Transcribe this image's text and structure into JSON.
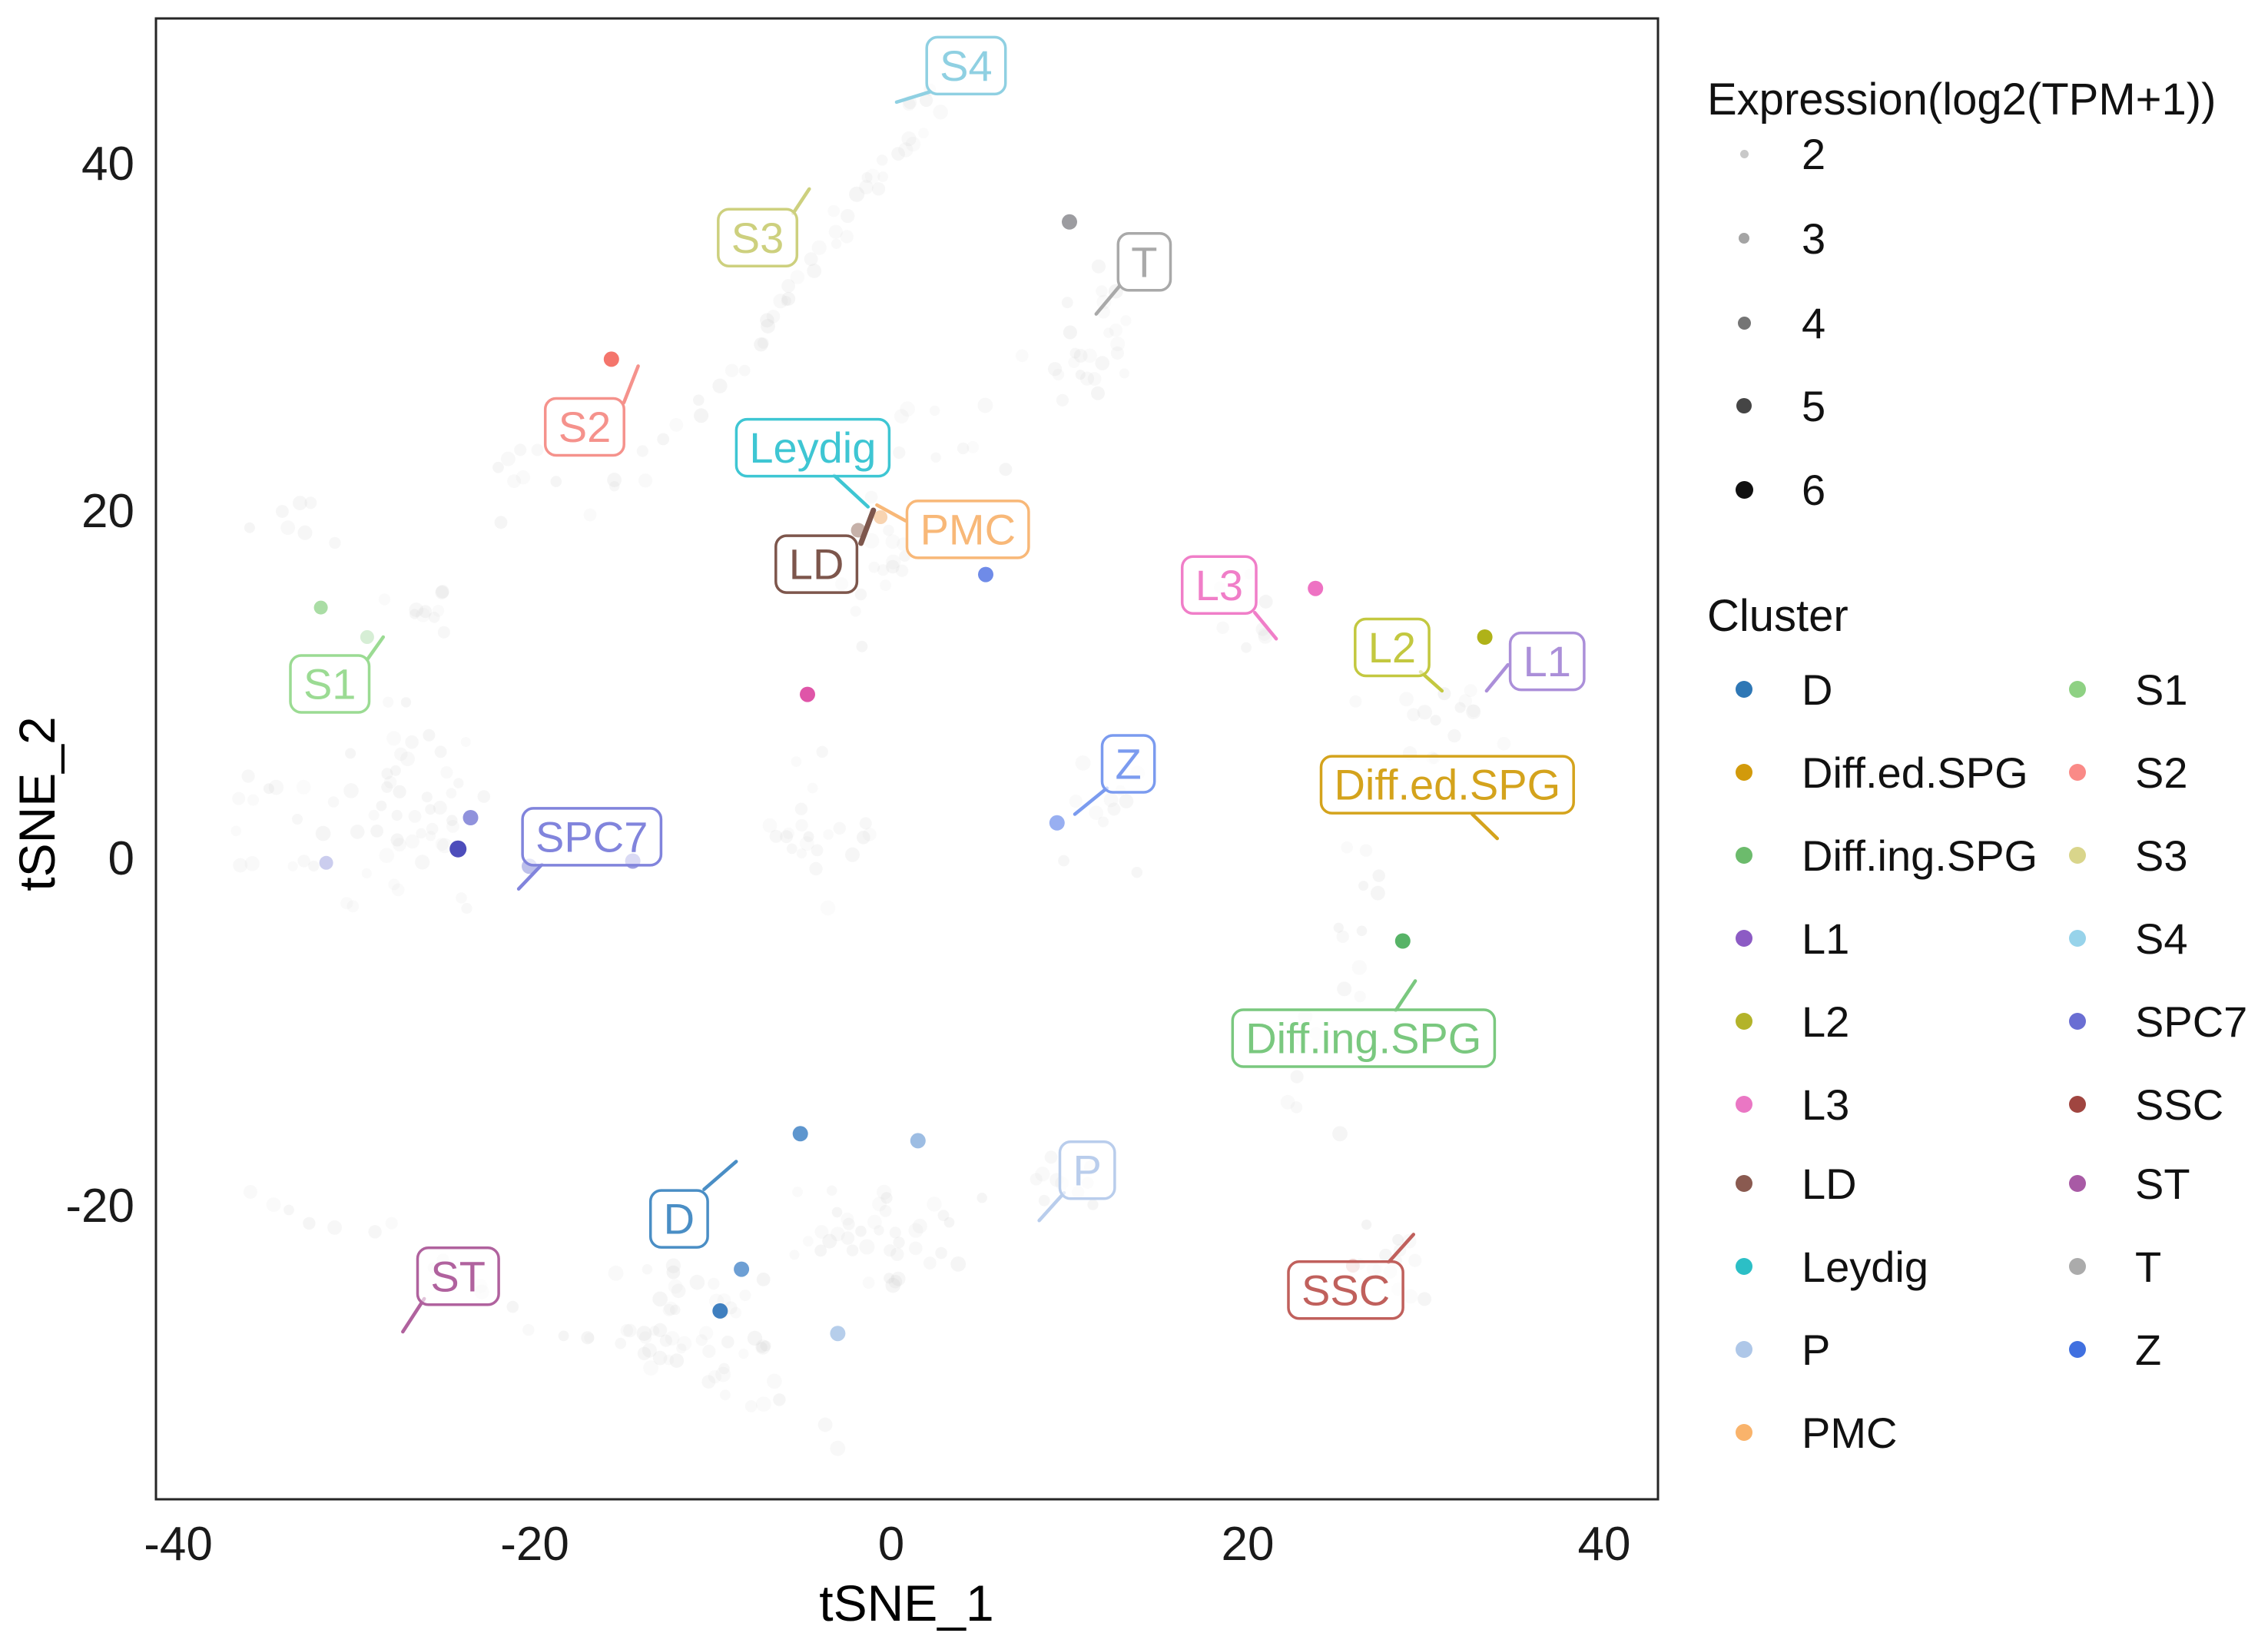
{
  "chart_data": {
    "type": "scatter",
    "title": "",
    "xlabel": "tSNE_1",
    "ylabel": "tSNE_2",
    "x_ticks": [
      -40,
      -20,
      0,
      20,
      40
    ],
    "y_ticks": [
      40,
      20,
      0,
      -20
    ],
    "xlim": [
      -41.25,
      43.0
    ],
    "ylim": [
      -36.9,
      48.3
    ],
    "grid": false,
    "legend_position": "right",
    "background_point_color": "#cfcfcf",
    "clusters": [
      {
        "name": "D",
        "color": "#4a8ec5",
        "box": {
          "x": -11.9,
          "y": -20.8
        },
        "leader": {
          "x1": -10.5,
          "y1": -19.1,
          "x2": -8.7,
          "y2": -17.5
        },
        "points": [
          {
            "x": -5.1,
            "y": -15.9,
            "color": "#4c8bc9",
            "r": 10,
            "o": 0.9
          },
          {
            "x": 1.5,
            "y": -16.3,
            "color": "#85acdc",
            "r": 10,
            "o": 0.8
          },
          {
            "x": -8.4,
            "y": -23.7,
            "color": "#5d95cf",
            "r": 10,
            "o": 0.9
          },
          {
            "x": -9.6,
            "y": -26.1,
            "color": "#3f7fbf",
            "r": 10,
            "o": 1
          }
        ]
      },
      {
        "name": "Diff.ed.SPG",
        "color": "#d4a31c",
        "box": {
          "x": 31.2,
          "y": 4.2
        },
        "leader": {
          "x1": 32.6,
          "y1": 2.5,
          "x2": 34.0,
          "y2": 1.1
        },
        "points": []
      },
      {
        "name": "Diff.ing.SPG",
        "color": "#7ac87f",
        "box": {
          "x": 26.5,
          "y": -10.4
        },
        "leader": {
          "x1": 28.3,
          "y1": -8.8,
          "x2": 29.4,
          "y2": -7.1
        },
        "points": [
          {
            "x": 28.7,
            "y": -4.8,
            "color": "#57b367",
            "r": 10,
            "o": 1
          }
        ]
      },
      {
        "name": "L1",
        "color": "#ab8fd9",
        "box": {
          "x": 36.8,
          "y": 11.3
        },
        "leader": {
          "x1": 34.6,
          "y1": 11.1,
          "x2": 33.4,
          "y2": 9.6
        },
        "points": []
      },
      {
        "name": "L2",
        "color": "#c3c840",
        "box": {
          "x": 28.1,
          "y": 12.1
        },
        "leader": {
          "x1": 29.7,
          "y1": 10.7,
          "x2": 30.9,
          "y2": 9.6
        },
        "points": [
          {
            "x": 33.3,
            "y": 12.7,
            "color": "#afb218",
            "r": 10,
            "o": 1
          }
        ]
      },
      {
        "name": "L3",
        "color": "#f07ec8",
        "box": {
          "x": 18.4,
          "y": 15.7
        },
        "leader": {
          "x1": 20.4,
          "y1": 14.1,
          "x2": 21.6,
          "y2": 12.6
        },
        "points": [
          {
            "x": 23.8,
            "y": 15.5,
            "color": "#ee72c3",
            "r": 10,
            "o": 1
          },
          {
            "x": -4.7,
            "y": 9.4,
            "color": "#df55a8",
            "r": 10,
            "o": 1
          }
        ]
      },
      {
        "name": "LD",
        "color": "#7d564c",
        "box": {
          "x": -4.2,
          "y": 16.9
        },
        "leader": {
          "x1": -1.7,
          "y1": 18.1,
          "x2": -1.0,
          "y2": 20.0
        },
        "leader_width": 7,
        "points": [
          {
            "x": -1.85,
            "y": 18.85,
            "color": "#c0a9a0",
            "r": 9.5,
            "o": 0.9
          }
        ]
      },
      {
        "name": "Leydig",
        "color": "#3ec6d3",
        "box": {
          "x": -4.4,
          "y": 23.6
        },
        "leader": {
          "x1": -3.2,
          "y1": 22.0,
          "x2": -1.3,
          "y2": 20.2
        },
        "points": []
      },
      {
        "name": "P",
        "color": "#b9cdec",
        "box": {
          "x": 11.0,
          "y": -18.0
        },
        "leader": {
          "x1": 9.7,
          "y1": -19.3,
          "x2": 8.3,
          "y2": -20.9
        },
        "points": [
          {
            "x": -3.0,
            "y": -27.4,
            "color": "#a9c6e8",
            "r": 10,
            "o": 0.85
          }
        ]
      },
      {
        "name": "PMC",
        "color": "#f8b878",
        "box": {
          "x": 4.3,
          "y": 18.9
        },
        "leader": {
          "x1": 0.8,
          "y1": 19.4,
          "x2": -0.8,
          "y2": 20.3
        },
        "points": [
          {
            "x": -0.6,
            "y": 19.6,
            "color": "#f2a964",
            "r": 9,
            "o": 0.5
          }
        ]
      },
      {
        "name": "S1",
        "color": "#9bdb93",
        "box": {
          "x": -31.5,
          "y": 10.0
        },
        "leader": {
          "x1": -29.4,
          "y1": 11.4,
          "x2": -28.5,
          "y2": 12.7
        },
        "points": [
          {
            "x": -32.0,
            "y": 14.4,
            "color": "#a5dba0",
            "r": 9,
            "o": 0.95
          },
          {
            "x": -29.4,
            "y": 12.7,
            "color": "#d2ecd0",
            "r": 9,
            "o": 0.9
          }
        ]
      },
      {
        "name": "S2",
        "color": "#f5928c",
        "box": {
          "x": -17.2,
          "y": 24.8
        },
        "leader": {
          "x1": -15.0,
          "y1": 26.2,
          "x2": -14.2,
          "y2": 28.3
        },
        "points": [
          {
            "x": -15.7,
            "y": 28.7,
            "color": "#f4756c",
            "r": 10,
            "o": 1
          }
        ]
      },
      {
        "name": "S3",
        "color": "#cdd07e",
        "box": {
          "x": -7.5,
          "y": 35.7
        },
        "leader": {
          "x1": -5.5,
          "y1": 37.1,
          "x2": -4.6,
          "y2": 38.5
        },
        "points": []
      },
      {
        "name": "S4",
        "color": "#8fd0e2",
        "box": {
          "x": 4.2,
          "y": 45.6
        },
        "leader": {
          "x1": 2.2,
          "y1": 44.1,
          "x2": 0.3,
          "y2": 43.5
        },
        "points": []
      },
      {
        "name": "SPC7",
        "color": "#8184dc",
        "box": {
          "x": -16.8,
          "y": 1.2
        },
        "leader": {
          "x1": -19.6,
          "y1": -0.4,
          "x2": -20.9,
          "y2": -1.8
        },
        "points": [
          {
            "x": -23.6,
            "y": 2.3,
            "color": "#7d7fd6",
            "r": 10,
            "o": 0.85
          },
          {
            "x": -24.3,
            "y": 0.5,
            "color": "#4d4dbb",
            "r": 11,
            "o": 1
          },
          {
            "x": -31.7,
            "y": -0.3,
            "color": "#a8abe3",
            "r": 9,
            "o": 0.6
          },
          {
            "x": -20.3,
            "y": -0.5,
            "color": "#9a9ee0",
            "r": 10,
            "o": 0.65
          },
          {
            "x": -14.5,
            "y": -0.2,
            "color": "#8486da",
            "r": 10,
            "o": 0.8
          }
        ]
      },
      {
        "name": "SSC",
        "color": "#c0605c",
        "box": {
          "x": 25.5,
          "y": -24.9
        },
        "leader": {
          "x1": 27.9,
          "y1": -23.3,
          "x2": 29.3,
          "y2": -21.7
        },
        "points": [
          {
            "x": 25.9,
            "y": -23.5,
            "color": "#dda09c",
            "r": 9,
            "o": 0.55
          }
        ]
      },
      {
        "name": "ST",
        "color": "#b0629e",
        "box": {
          "x": -24.3,
          "y": -24.1
        },
        "leader": {
          "x1": -26.2,
          "y1": -25.4,
          "x2": -27.4,
          "y2": -27.3
        },
        "points": []
      },
      {
        "name": "T",
        "color": "#a9a9a9",
        "box": {
          "x": 14.2,
          "y": 34.3
        },
        "leader": {
          "x1": 12.8,
          "y1": 32.9,
          "x2": 11.5,
          "y2": 31.3
        },
        "points": [
          {
            "x": 10.0,
            "y": 36.6,
            "color": "#9c9ca0",
            "r": 10,
            "o": 1
          }
        ]
      },
      {
        "name": "Z",
        "color": "#7b9bef",
        "box": {
          "x": 13.3,
          "y": 5.4
        },
        "leader": {
          "x1": 12.1,
          "y1": 4.0,
          "x2": 10.3,
          "y2": 2.5
        },
        "points": [
          {
            "x": 5.3,
            "y": 16.3,
            "color": "#5f7ee6",
            "r": 10,
            "o": 0.9
          },
          {
            "x": 9.3,
            "y": 2.0,
            "color": "#7e9bee",
            "r": 10,
            "o": 0.8
          }
        ]
      }
    ],
    "background_blobs": [
      {
        "type": "line",
        "x1": -7.2,
        "y1": 30,
        "x2": 2.8,
        "y2": 44.5,
        "n": 34,
        "jx": 1.1,
        "jy": 0.9
      },
      {
        "type": "line",
        "x1": -16.5,
        "y1": 20.5,
        "x2": -7.2,
        "y2": 29.5,
        "n": 13,
        "jx": 1.1,
        "jy": 1.0
      },
      {
        "type": "gauss",
        "cx": 11.5,
        "cy": 29.5,
        "sx": 3.0,
        "sy": 3.8,
        "n": 26
      },
      {
        "type": "gauss",
        "cx": -27.5,
        "cy": 2.5,
        "sx": 4.8,
        "sy": 5.4,
        "n": 55
      },
      {
        "type": "gauss",
        "cx": -26,
        "cy": 14.5,
        "sx": 2.8,
        "sy": 2.2,
        "n": 10
      },
      {
        "type": "gauss",
        "cx": -3.5,
        "cy": 1.5,
        "sx": 4.4,
        "sy": 4.4,
        "n": 22
      },
      {
        "type": "gauss",
        "cx": -0.5,
        "cy": 17,
        "sx": 2.0,
        "sy": 3.0,
        "n": 16
      },
      {
        "type": "gauss",
        "cx": -10.5,
        "cy": -27,
        "sx": 4.4,
        "sy": 3.2,
        "n": 46
      },
      {
        "type": "gauss",
        "cx": 0,
        "cy": -21.5,
        "sx": 5.4,
        "sy": 2.7,
        "n": 40
      },
      {
        "type": "line",
        "x1": -36,
        "y1": -19,
        "x2": -3,
        "y2": -33.5,
        "n": 26,
        "jx": 1.4,
        "jy": 1.2
      },
      {
        "type": "line",
        "x1": 23,
        "y1": -15,
        "x2": 27.5,
        "y2": 1,
        "n": 18,
        "jx": 1.6,
        "jy": 1.6
      },
      {
        "type": "gauss",
        "cx": 28,
        "cy": -23,
        "sx": 2.6,
        "sy": 3.0,
        "n": 14
      },
      {
        "type": "gauss",
        "cx": 30,
        "cy": 7,
        "sx": 4.4,
        "sy": 3.4,
        "n": 16
      },
      {
        "type": "gauss",
        "cx": 12.5,
        "cy": 3,
        "sx": 3.0,
        "sy": 3.4,
        "n": 11
      },
      {
        "type": "gauss",
        "cx": 3,
        "cy": 24,
        "sx": 3.4,
        "sy": 3.4,
        "n": 9
      },
      {
        "type": "gauss",
        "cx": 20,
        "cy": 13,
        "sx": 3.0,
        "sy": 2.4,
        "n": 8
      },
      {
        "type": "gauss",
        "cx": -36,
        "cy": 2,
        "sx": 1.6,
        "sy": 3.8,
        "n": 8
      },
      {
        "type": "gauss",
        "cx": 9.5,
        "cy": -19,
        "sx": 2.4,
        "sy": 2.2,
        "n": 10
      },
      {
        "type": "gauss",
        "cx": -34,
        "cy": 19,
        "sx": 2.5,
        "sy": 2.5,
        "n": 7
      },
      {
        "type": "gauss",
        "cx": -20,
        "cy": 22,
        "sx": 2.5,
        "sy": 3.0,
        "n": 8
      }
    ]
  },
  "expression_legend": {
    "title": "Expression(log2(TPM+1))",
    "items": [
      {
        "label": "2",
        "r": 5.5,
        "color": "#c8c8c8"
      },
      {
        "label": "3",
        "r": 7,
        "color": "#a4a4a4"
      },
      {
        "label": "4",
        "r": 8.5,
        "color": "#757575"
      },
      {
        "label": "5",
        "r": 10,
        "color": "#454545"
      },
      {
        "label": "6",
        "r": 11.5,
        "color": "#101010"
      }
    ]
  },
  "cluster_legend": {
    "title": "Cluster",
    "column1": [
      {
        "label": "D",
        "color": "#2e77b5"
      },
      {
        "label": "Diff.ed.SPG",
        "color": "#d29a0b"
      },
      {
        "label": "Diff.ing.SPG",
        "color": "#6cbb6c"
      },
      {
        "label": "L1",
        "color": "#8c5bc4"
      },
      {
        "label": "L2",
        "color": "#b3b32a"
      },
      {
        "label": "L3",
        "color": "#ea77c4"
      },
      {
        "label": "LD",
        "color": "#8a5a50"
      },
      {
        "label": "Leydig",
        "color": "#2cbfc6"
      },
      {
        "label": "P",
        "color": "#aec7e8"
      },
      {
        "label": "PMC",
        "color": "#f9b36b"
      }
    ],
    "column2": [
      {
        "label": "S1",
        "color": "#8ed183"
      },
      {
        "label": "S2",
        "color": "#fa8a87"
      },
      {
        "label": "S3",
        "color": "#d9d58b"
      },
      {
        "label": "S4",
        "color": "#97d3ea"
      },
      {
        "label": "SPC7",
        "color": "#6a6ed3"
      },
      {
        "label": "SSC",
        "color": "#a04540"
      },
      {
        "label": "ST",
        "color": "#a85aa5"
      },
      {
        "label": "T",
        "color": "#ababab"
      },
      {
        "label": "Z",
        "color": "#4070e0"
      }
    ]
  }
}
